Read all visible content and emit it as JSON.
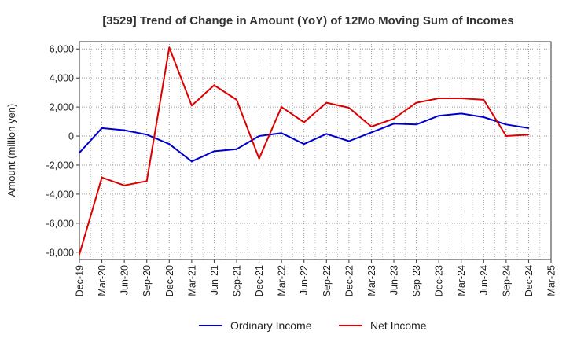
{
  "chart_data": {
    "type": "line",
    "title": "[3529]  Trend of Change in Amount (YoY) of 12Mo Moving Sum of Incomes",
    "xlabel": "",
    "ylabel": "Amount (million yen)",
    "ylim": [
      -8500,
      6500
    ],
    "yticks": [
      6000,
      4000,
      2000,
      0,
      -2000,
      -4000,
      -6000,
      -8000
    ],
    "ytick_labels": [
      "6,000",
      "4,000",
      "2,000",
      "0",
      "-2,000",
      "-4,000",
      "-6,000",
      "-8,000"
    ],
    "x": [
      "Dec-19",
      "Mar-20",
      "Jun-20",
      "Sep-20",
      "Dec-20",
      "Mar-21",
      "Jun-21",
      "Sep-21",
      "Dec-21",
      "Mar-22",
      "Jun-22",
      "Sep-22",
      "Dec-22",
      "Mar-23",
      "Jun-23",
      "Sep-23",
      "Dec-23",
      "Mar-24",
      "Jun-24",
      "Sep-24",
      "Dec-24",
      "Mar-25"
    ],
    "grid": true,
    "legend_position": "bottom",
    "series": [
      {
        "name": "Ordinary Income",
        "color": "#0000cc",
        "values": [
          -1150,
          550,
          400,
          100,
          -550,
          -1750,
          -1050,
          -900,
          0,
          200,
          -550,
          150,
          -350,
          250,
          850,
          800,
          1400,
          1550,
          1300,
          800,
          550,
          null
        ]
      },
      {
        "name": "Net Income",
        "color": "#dd0000",
        "values": [
          -8150,
          -2850,
          -3400,
          -3100,
          6100,
          2100,
          3500,
          2500,
          -1550,
          2000,
          950,
          2300,
          1950,
          650,
          1200,
          2300,
          2600,
          2600,
          2500,
          0,
          100,
          null
        ]
      }
    ]
  }
}
